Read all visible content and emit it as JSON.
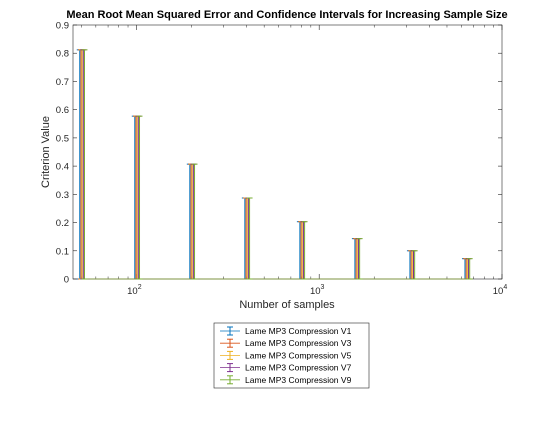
{
  "chart_data": {
    "type": "errorbar",
    "title": "Mean Root Mean Squared Error and Confidence Intervals for Increasing Sample Size",
    "xlabel": "Number of samples",
    "ylabel": "Criterion Value",
    "x_scale": "log",
    "xlim": [
      45,
      10000
    ],
    "ylim": [
      0,
      0.9
    ],
    "x_ticks": [
      {
        "value": 100,
        "base": "10",
        "exp": "2"
      },
      {
        "value": 1000,
        "base": "10",
        "exp": "3"
      },
      {
        "value": 10000,
        "base": "10",
        "exp": "4"
      }
    ],
    "y_ticks": [
      "0",
      "0.1",
      "0.2",
      "0.3",
      "0.4",
      "0.5",
      "0.6",
      "0.7",
      "0.8",
      "0.9"
    ],
    "x": [
      50,
      100,
      200,
      400,
      800,
      1600,
      3200,
      6400
    ],
    "upper_bounds": [
      0.812,
      0.577,
      0.407,
      0.287,
      0.203,
      0.143,
      0.1,
      0.072
    ],
    "series": [
      {
        "name": "Lame MP3 Compression V1",
        "color": "#0072BD",
        "offset": 0.98
      },
      {
        "name": "Lame MP3 Compression V3",
        "color": "#D95319",
        "offset": 0.995
      },
      {
        "name": "Lame MP3 Compression V5",
        "color": "#EDB120",
        "offset": 1.01
      },
      {
        "name": "Lame MP3 Compression V7",
        "color": "#7E2F8E",
        "offset": 1.025
      },
      {
        "name": "Lame MP3 Compression V9",
        "color": "#77AC30",
        "offset": 1.04
      }
    ],
    "grid": false,
    "legend_position": "bottom-center, outside axes"
  }
}
